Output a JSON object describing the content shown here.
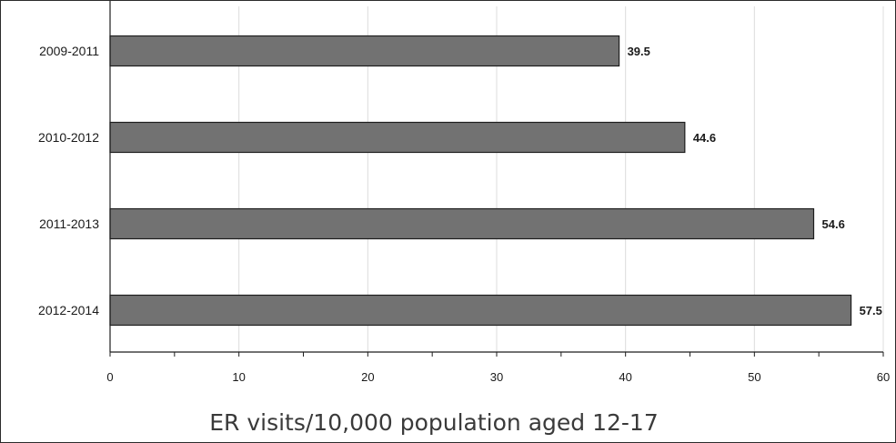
{
  "chart_data": {
    "type": "bar",
    "orientation": "horizontal",
    "categories": [
      "2009-2011",
      "2010-2012",
      "2011-2013",
      "2012-2014"
    ],
    "values": [
      39.5,
      44.6,
      54.6,
      57.5
    ],
    "data_labels": [
      "39.5",
      "44.6",
      "54.6",
      "57.5"
    ],
    "xlabel": "ER visits/10,000 population aged 12-17",
    "ylabel": "",
    "title": "",
    "xlim": [
      0,
      60
    ],
    "x_ticks": [
      0,
      10,
      20,
      30,
      40,
      50,
      60
    ],
    "x_tick_labels": [
      "0",
      "10",
      "20",
      "30",
      "40",
      "50",
      "60"
    ],
    "grid": "vertical",
    "legend": "none",
    "colors": {
      "bar_fill": "#727272",
      "bar_stroke": "#1e1e1e",
      "grid": "#dcdcdc",
      "axis": "#1e1e1e"
    }
  }
}
